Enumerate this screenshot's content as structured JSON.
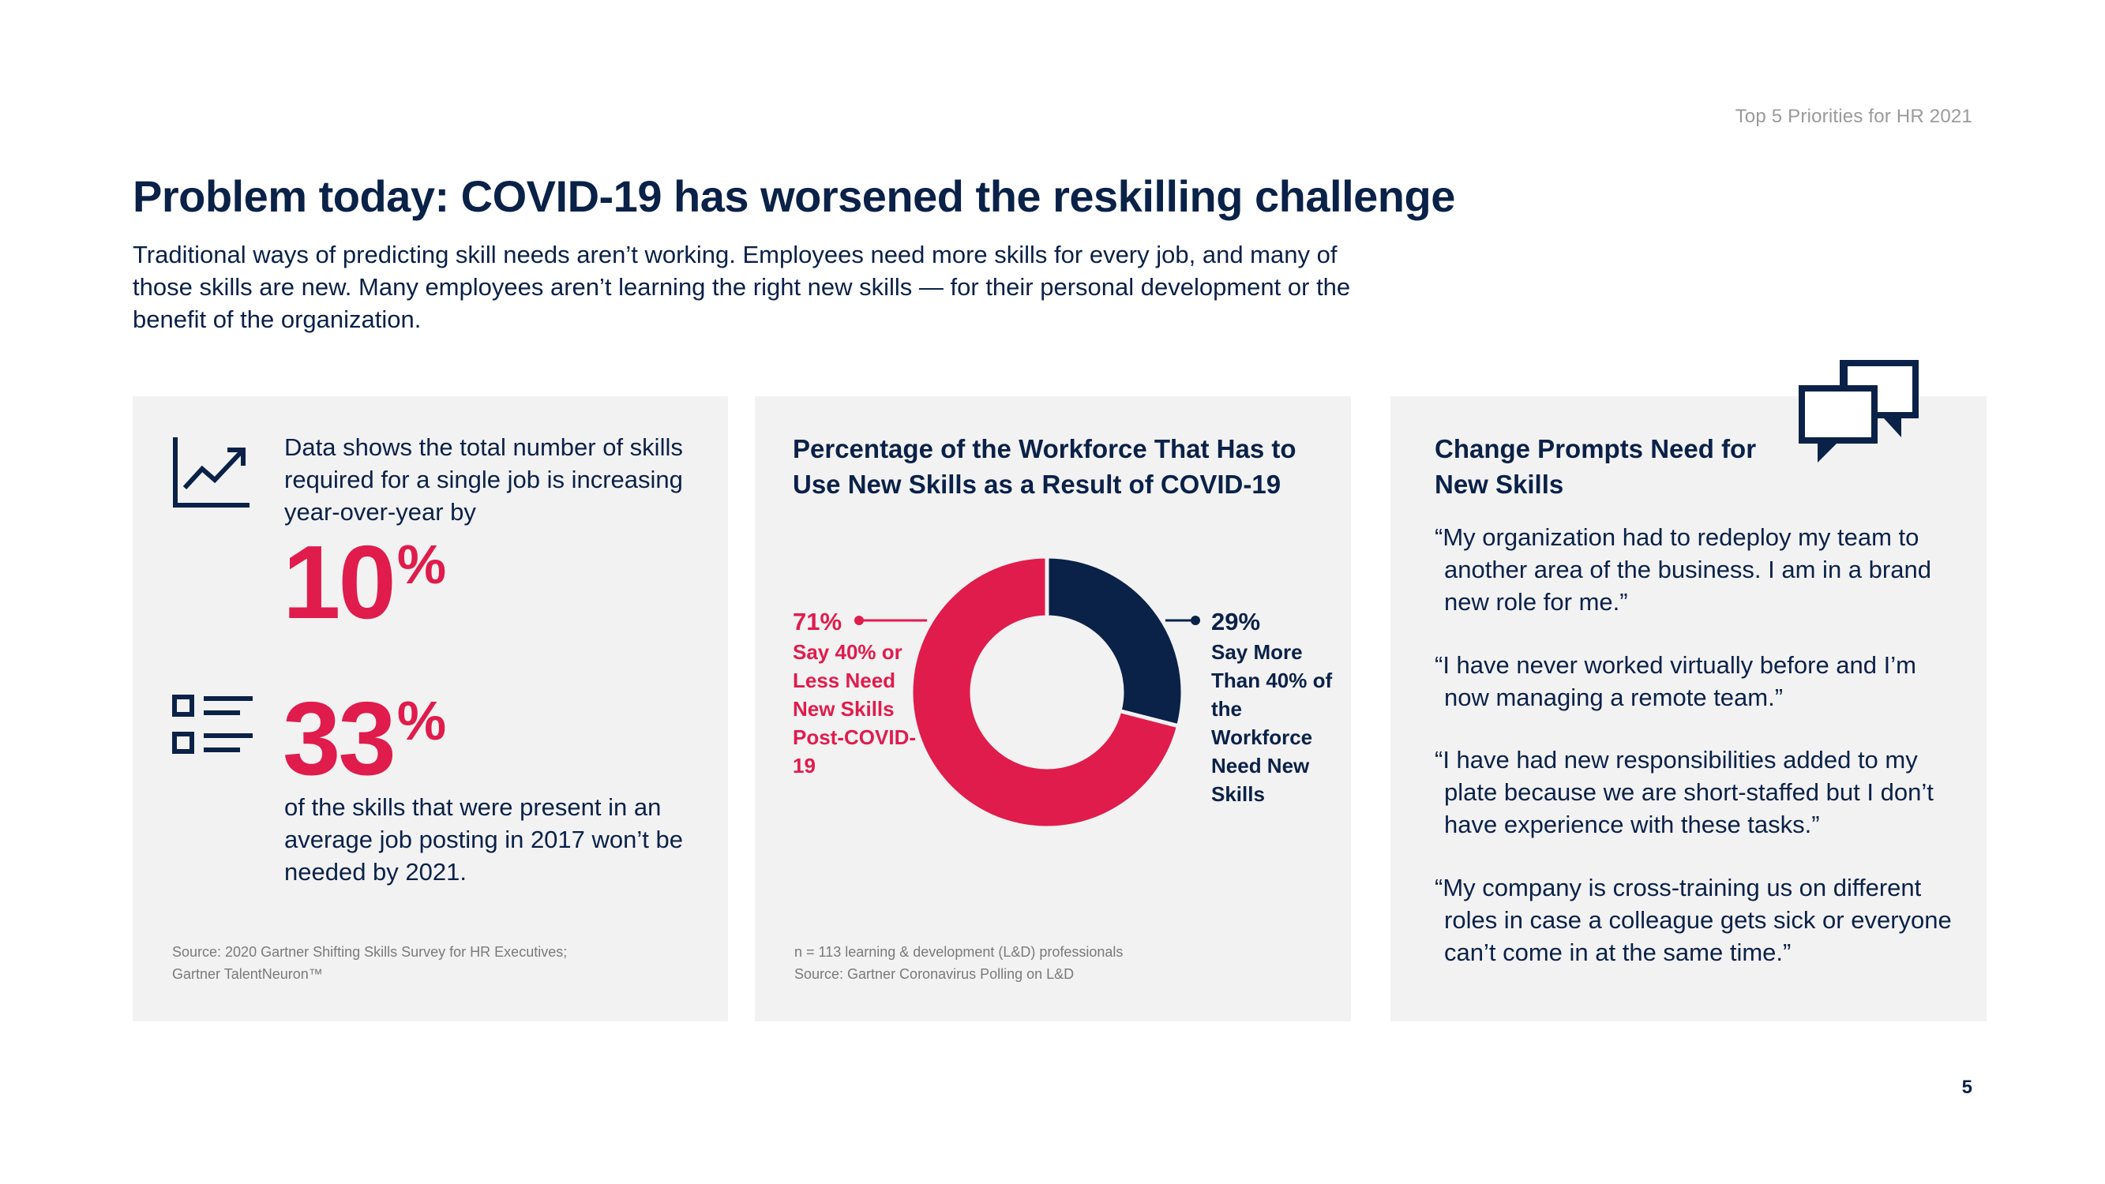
{
  "header": {
    "report_name": "Top 5 Priorities for HR 2021",
    "title": "Problem today: COVID-19 has worsened the reskilling challenge",
    "intro": "Traditional ways of predicting skill needs aren’t working. Employees need more skills for every job, and many of those skills are new. Many employees aren’t learning the right new skills — for their personal development or the benefit of the organization."
  },
  "left_panel": {
    "stat1_desc": "Data shows the total number of skills required for a single job is increasing year-over-year by",
    "stat1_value": "10",
    "stat1_unit": "%",
    "stat2_value": "33",
    "stat2_unit": "%",
    "stat2_desc": "of the skills that were present in an average job posting in 2017 won’t be needed by 2021.",
    "source_line1": "Source: 2020 Gartner Shifting Skills Survey for HR Executives;",
    "source_line2": "Gartner TalentNeuron™",
    "icons": [
      "trend-up-icon",
      "checklist-icon"
    ]
  },
  "middle_panel": {
    "title": "Percentage of the Workforce That Has to Use New Skills as a Result of COVID-19",
    "note_line1": "n = 113 learning & development (L&D) professionals",
    "note_line2": "Source: Gartner Coronavirus Polling on L&D"
  },
  "chart_data": {
    "type": "pie",
    "donut": true,
    "slices": [
      {
        "value": 71,
        "pct_label": "71%",
        "label": "Say 40% or Less Need New Skills Post-COVID-19",
        "color": "#e01c4c"
      },
      {
        "value": 29,
        "pct_label": "29%",
        "label": "Say More Than 40% of the Workforce Need New Skills",
        "color": "#0a2148"
      }
    ]
  },
  "right_panel": {
    "title": "Change Prompts Need for New Skills",
    "quotes": [
      "“My organization had to redeploy my team to another area of the business. I am in a brand new role for me.”",
      "“I have never worked virtually before and I’m now managing a remote team.”",
      "“I have had new responsibilities added to my plate because we are short-staffed but I don’t have experience with these tasks.”",
      "“My company is cross-training us on different roles in case a colleague gets sick or everyone can’t come in at the same time.”"
    ],
    "icon": "chat-bubbles-icon"
  },
  "footer": {
    "page_number": "5"
  },
  "colors": {
    "navy": "#0a2148",
    "magenta": "#e01c4c",
    "panel_bg": "#f2f2f2"
  }
}
